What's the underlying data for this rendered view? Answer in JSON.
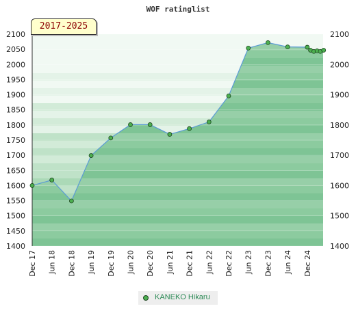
{
  "chart_data": {
    "type": "area",
    "title": "WOF ratinglist",
    "period": "2017-2025",
    "ylim": [
      1400,
      2100
    ],
    "y_ticks": [
      1400,
      1450,
      1500,
      1550,
      1600,
      1650,
      1700,
      1750,
      1800,
      1850,
      1900,
      1950,
      2000,
      2050,
      2100
    ],
    "y_ticks_right": [
      1400,
      1500,
      1600,
      1700,
      1800,
      1900,
      2000,
      2100
    ],
    "x_ticks": [
      "Dec 17",
      "Jun 18",
      "Dec 18",
      "Jun 19",
      "Dec 19",
      "Jun 20",
      "Dec 20",
      "Jun 21",
      "Dec 21",
      "Jun 22",
      "Dec 22",
      "Jun 23",
      "Dec 23",
      "Jun 24",
      "Dec 24"
    ],
    "grid": true,
    "legend": "bottom-center",
    "colors": {
      "line": "#5b9bd5",
      "fill_bands": [
        "#9ed3ac",
        "#abd9b7",
        "#bfe2c8",
        "#d2ebd8",
        "#e4f3e8",
        "#f1f9f3"
      ],
      "area_bands": [
        "#7ec495",
        "#8ccb9f",
        "#97cfa8"
      ],
      "marker_fill": "#4caf50",
      "marker_stroke": "#1e4620",
      "legend_text": "#2e8b57"
    },
    "series": [
      {
        "name": "KANEKO Hikaru",
        "x": [
          "Dec 17",
          "Jun 18",
          "Dec 18",
          "Jun 19",
          "Dec 19",
          "Jun 20",
          "Dec 20",
          "Jun 21",
          "Dec 21",
          "Jun 22",
          "Dec 22",
          "Jun 23",
          "Dec 23",
          "Jun 24",
          "Dec 24",
          "Jan 25",
          "Feb 25",
          "Mar 25",
          "Apr 25",
          "May 25"
        ],
        "values": [
          1600,
          1618,
          1549,
          1699,
          1757,
          1801,
          1801,
          1769,
          1788,
          1810,
          1896,
          2054,
          2072,
          2058,
          2057,
          2047,
          2043,
          2045,
          2043,
          2047
        ]
      }
    ]
  }
}
